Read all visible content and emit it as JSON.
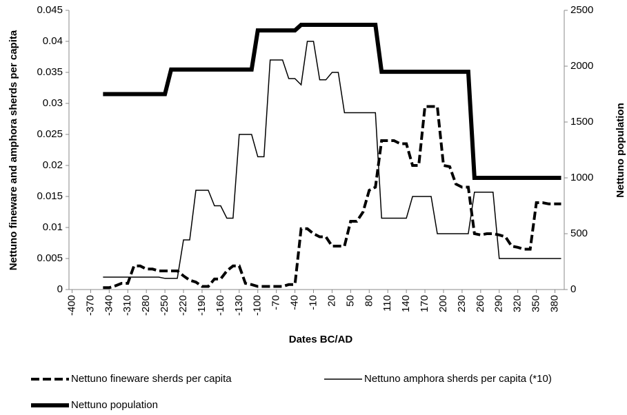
{
  "chart_data": {
    "type": "line",
    "xlabel": "Dates BC/AD",
    "ylabel": "Nettuno fineware and amphora sherds per capita",
    "y2label": "Nettuno population",
    "x": [
      -350,
      -340,
      -330,
      -320,
      -310,
      -300,
      -290,
      -280,
      -270,
      -260,
      -250,
      -240,
      -230,
      -220,
      -210,
      -200,
      -190,
      -180,
      -170,
      -160,
      -150,
      -140,
      -130,
      -120,
      -110,
      -100,
      -90,
      -80,
      -70,
      -60,
      -50,
      -40,
      -30,
      -20,
      -10,
      0,
      10,
      20,
      30,
      40,
      50,
      60,
      70,
      80,
      90,
      100,
      110,
      120,
      130,
      140,
      150,
      160,
      170,
      180,
      190,
      200,
      210,
      220,
      230,
      240,
      250,
      260,
      270,
      280,
      290,
      300,
      310,
      320,
      330,
      340,
      350,
      360,
      370,
      380,
      390
    ],
    "xlim": [
      -405,
      395
    ],
    "xticks": [
      -400,
      -370,
      -340,
      -310,
      -280,
      -250,
      -220,
      -190,
      -160,
      -130,
      -100,
      -70,
      -40,
      -10,
      20,
      50,
      80,
      110,
      140,
      170,
      200,
      230,
      260,
      290,
      320,
      350,
      380
    ],
    "ylim": [
      0,
      0.045
    ],
    "yticks": [
      0,
      0.005,
      0.01,
      0.015,
      0.02,
      0.025,
      0.03,
      0.035,
      0.04,
      0.045
    ],
    "y2lim": [
      0,
      2500
    ],
    "y2ticks": [
      0,
      500,
      1000,
      1500,
      2000,
      2500
    ],
    "grid": false,
    "series": [
      {
        "name": "Nettuno fineware sherds per capita",
        "color": "#000000",
        "line_width": 4,
        "dashed": true,
        "values": [
          0.0003,
          0.0003,
          0.0006,
          0.001,
          0.001,
          0.0038,
          0.0038,
          0.0033,
          0.0033,
          0.003,
          0.003,
          0.003,
          0.003,
          0.0022,
          0.0015,
          0.0012,
          0.0005,
          0.0005,
          0.0017,
          0.0017,
          0.003,
          0.0038,
          0.0038,
          0.001,
          0.0008,
          0.0005,
          0.0005,
          0.0005,
          0.0005,
          0.0005,
          0.0008,
          0.0008,
          0.0098,
          0.0098,
          0.009,
          0.0085,
          0.0085,
          0.007,
          0.007,
          0.007,
          0.011,
          0.011,
          0.0125,
          0.016,
          0.0165,
          0.024,
          0.024,
          0.024,
          0.0235,
          0.0235,
          0.02,
          0.02,
          0.0295,
          0.0295,
          0.0295,
          0.02,
          0.0198,
          0.017,
          0.0165,
          0.0165,
          0.009,
          0.0088,
          0.009,
          0.009,
          0.0088,
          0.0085,
          0.007,
          0.0068,
          0.0065,
          0.0065,
          0.014,
          0.014,
          0.0138,
          0.0138,
          0.0138
        ]
      },
      {
        "name": "Nettuno amphora sherds per capita (*10)",
        "color": "#000000",
        "line_width": 1.5,
        "dashed": false,
        "values": [
          0.002,
          0.002,
          0.002,
          0.002,
          0.002,
          0.002,
          0.002,
          0.002,
          0.002,
          0.002,
          0.0018,
          0.0018,
          0.0018,
          0.008,
          0.008,
          0.016,
          0.016,
          0.016,
          0.0135,
          0.0135,
          0.0115,
          0.0115,
          0.025,
          0.025,
          0.025,
          0.0214,
          0.0214,
          0.037,
          0.037,
          0.037,
          0.034,
          0.034,
          0.033,
          0.04,
          0.04,
          0.0338,
          0.0338,
          0.035,
          0.035,
          0.0285,
          0.0285,
          0.0285,
          0.0285,
          0.0285,
          0.0285,
          0.0115,
          0.0115,
          0.0115,
          0.0115,
          0.0115,
          0.015,
          0.015,
          0.015,
          0.015,
          0.009,
          0.009,
          0.009,
          0.009,
          0.009,
          0.009,
          0.0157,
          0.0157,
          0.0157,
          0.0157,
          0.005,
          0.005,
          0.005,
          0.005,
          0.005,
          0.005,
          0.005,
          0.005,
          0.005,
          0.005,
          0.005
        ]
      },
      {
        "name": "Nettuno population",
        "color": "#000000",
        "line_width": 6,
        "dashed": false,
        "axis": "y2",
        "values": [
          1750,
          1750,
          1750,
          1750,
          1750,
          1750,
          1750,
          1750,
          1750,
          1750,
          1750,
          1970,
          1970,
          1970,
          1970,
          1970,
          1970,
          1970,
          1970,
          1970,
          1970,
          1970,
          1970,
          1970,
          1970,
          2320,
          2320,
          2320,
          2320,
          2320,
          2320,
          2320,
          2370,
          2370,
          2370,
          2370,
          2370,
          2370,
          2370,
          2370,
          2370,
          2370,
          2370,
          2370,
          2370,
          1950,
          1950,
          1950,
          1950,
          1950,
          1950,
          1950,
          1950,
          1950,
          1950,
          1950,
          1950,
          1950,
          1950,
          1950,
          1000,
          1000,
          1000,
          1000,
          1000,
          1000,
          1000,
          1000,
          1000,
          1000,
          1000,
          1000,
          1000,
          1000,
          1000
        ]
      }
    ]
  }
}
